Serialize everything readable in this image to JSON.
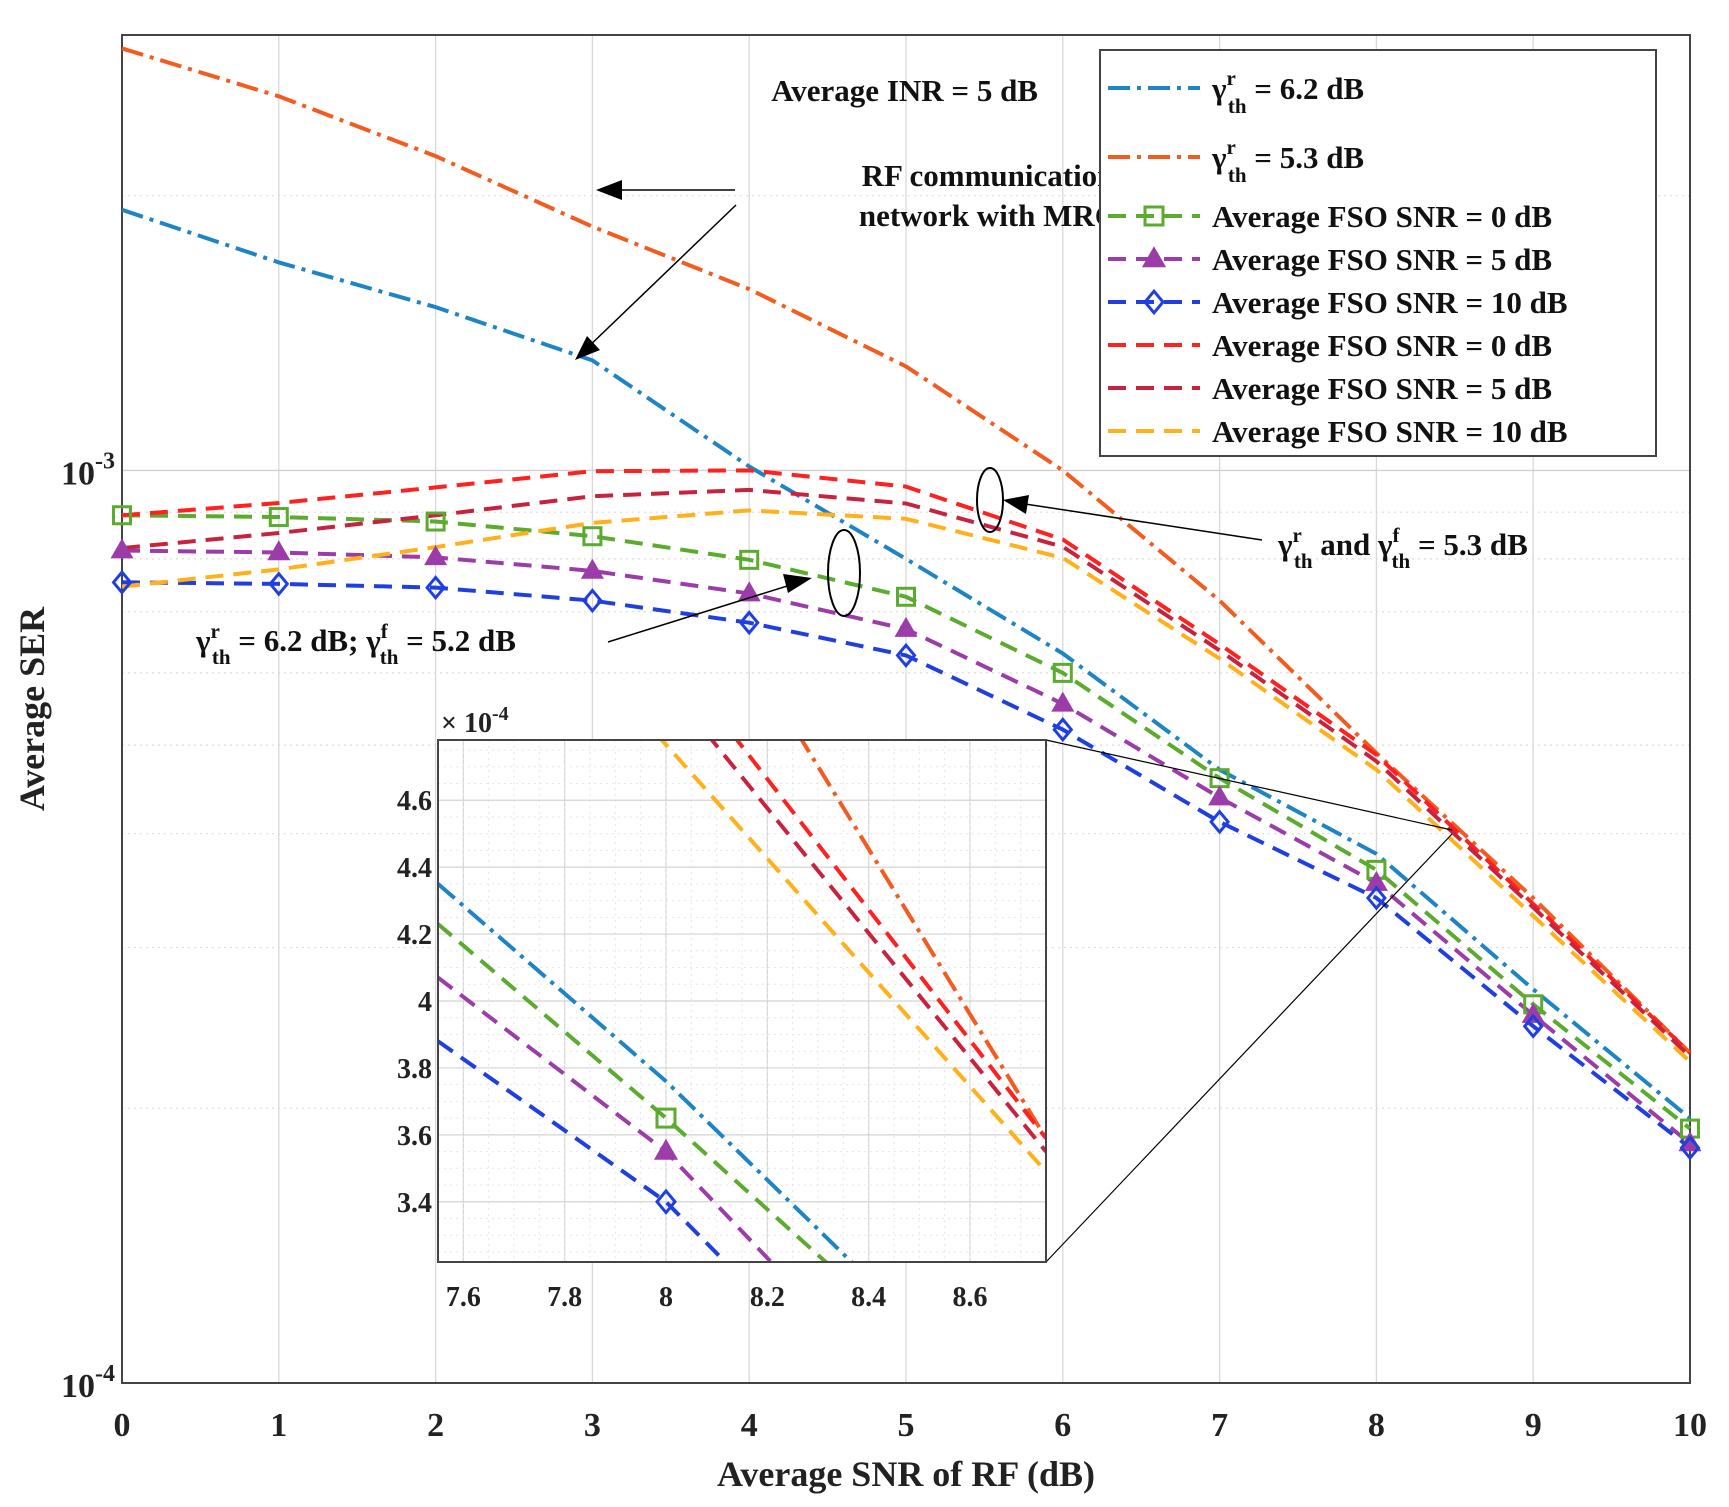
{
  "chart_data": {
    "type": "line",
    "xlabel": "Average SNR of RF (dB)",
    "ylabel": "Average SER",
    "xlim": [
      0,
      10
    ],
    "ylim": [
      0.0001,
      0.003
    ],
    "yscale": "log",
    "grid": true,
    "legend_position": "top-right",
    "x_ticks": [
      "0",
      "1",
      "2",
      "3",
      "4",
      "5",
      "6",
      "7",
      "8",
      "9",
      "10"
    ],
    "y_tick_labels": [
      {
        "base": "10",
        "exp": "-3",
        "value": 0.001
      },
      {
        "base": "10",
        "exp": "-4",
        "value": 0.0001
      }
    ],
    "x": [
      0,
      1,
      2,
      3,
      4,
      5,
      6,
      7,
      8,
      9,
      10
    ],
    "series": [
      {
        "id": "rf62",
        "name": "γ_th^r = 6.2 dB",
        "label_parts": [
          "γ",
          "th",
          "r",
          " = 6.2 dB"
        ],
        "color": "#1f84c4",
        "dash": "dashdot",
        "marker": "none",
        "values": [
          0.00193,
          0.00169,
          0.00151,
          0.00132,
          0.00101,
          0.0008,
          0.00063,
          0.00047,
          0.00038,
          0.00027,
          0.000195
        ]
      },
      {
        "id": "rf53",
        "name": "γ_th^r = 5.3 dB",
        "label_parts": [
          "γ",
          "th",
          "r",
          " = 5.3 dB"
        ],
        "color": "#f35b1f",
        "dash": "dashdot",
        "marker": "none",
        "values": [
          0.0029,
          0.00257,
          0.00221,
          0.00185,
          0.00158,
          0.0013,
          0.001,
          0.00072,
          0.00049,
          0.00034,
          0.00023
        ]
      },
      {
        "id": "s62_0",
        "name": "Average FSO SNR = 0 dB",
        "color": "#5aab2e",
        "dash": "dash",
        "marker": "square",
        "values": [
          0.000893,
          0.000889,
          0.000879,
          0.000847,
          0.000798,
          0.000727,
          0.0006,
          0.00046,
          0.000365,
          0.00026,
          0.00019
        ]
      },
      {
        "id": "s62_5",
        "name": "Average FSO SNR = 5 dB",
        "color": "#9b3ca8",
        "dash": "dash",
        "marker": "triangle",
        "values": [
          0.000817,
          0.000813,
          0.000803,
          0.000776,
          0.000733,
          0.00067,
          0.000555,
          0.000438,
          0.000353,
          0.000253,
          0.000183
        ]
      },
      {
        "id": "s62_10",
        "name": "Average FSO SNR = 10 dB",
        "color": "#1f3fe0",
        "dash": "dash",
        "marker": "diamond",
        "values": [
          0.000754,
          0.000751,
          0.000744,
          0.00072,
          0.000681,
          0.000627,
          0.00052,
          0.000412,
          0.00034,
          0.000246,
          0.000181
        ]
      },
      {
        "id": "s53_0",
        "name": "Average FSO SNR = 0 dB",
        "color": "#ff2020",
        "dash": "dash",
        "marker": "none",
        "values": [
          0.000893,
          0.000921,
          0.000958,
          0.000998,
          0.001,
          0.00096,
          0.00084,
          0.000645,
          0.000488,
          0.000335,
          0.00023
        ]
      },
      {
        "id": "s53_5",
        "name": "Average FSO SNR = 5 dB",
        "color": "#c7233f",
        "dash": "dash",
        "marker": "none",
        "values": [
          0.000822,
          0.000854,
          0.000893,
          0.000937,
          0.000952,
          0.00092,
          0.000825,
          0.000635,
          0.00048,
          0.000332,
          0.000228
        ]
      },
      {
        "id": "s53_10",
        "name": "Average FSO SNR = 10 dB",
        "color": "#ffb01a",
        "dash": "dash",
        "marker": "none",
        "values": [
          0.000746,
          0.000779,
          0.000824,
          0.000876,
          0.000904,
          0.000885,
          0.000802,
          0.000622,
          0.00047,
          0.000325,
          0.000225
        ]
      }
    ],
    "inset": {
      "multiplier_base": "× 10",
      "multiplier_exp": "-4",
      "xlim": [
        7.55,
        8.75
      ],
      "ylim": [
        3.22,
        4.78
      ],
      "x_ticks": [
        "7.6",
        "7.8",
        "8",
        "8.2",
        "8.4",
        "8.6"
      ],
      "y_ticks": [
        "3.4",
        "3.6",
        "3.8",
        "4",
        "4.2",
        "4.4",
        "4.6"
      ],
      "lines": [
        {
          "series": "rf62",
          "points": [
            [
              7.55,
              4.35
            ],
            [
              8.0,
              3.76
            ],
            [
              8.38,
              3.2
            ]
          ]
        },
        {
          "series": "s62_0",
          "points": [
            [
              7.55,
              4.23
            ],
            [
              8.0,
              3.65
            ],
            [
              8.33,
              3.2
            ]
          ]
        },
        {
          "series": "s62_5",
          "points": [
            [
              7.55,
              4.07
            ],
            [
              8.0,
              3.55
            ],
            [
              8.22,
              3.2
            ]
          ]
        },
        {
          "series": "s62_10",
          "points": [
            [
              7.55,
              3.88
            ],
            [
              8.0,
              3.4
            ],
            [
              8.13,
              3.2
            ]
          ]
        },
        {
          "series": "rf53",
          "points": [
            [
              8.26,
              4.8
            ],
            [
              8.75,
              3.59
            ]
          ]
        },
        {
          "series": "s53_0",
          "points": [
            [
              8.13,
              4.8
            ],
            [
              8.75,
              3.59
            ]
          ]
        },
        {
          "series": "s53_5",
          "points": [
            [
              8.08,
              4.8
            ],
            [
              8.75,
              3.55
            ]
          ]
        },
        {
          "series": "s53_10",
          "points": [
            [
              7.98,
              4.8
            ],
            [
              8.75,
              3.49
            ]
          ]
        }
      ],
      "markers": [
        {
          "series": "s62_0",
          "x": 8.0,
          "y": 3.65
        },
        {
          "series": "s62_5",
          "x": 8.0,
          "y": 3.55
        },
        {
          "series": "s62_10",
          "x": 8.0,
          "y": 3.4
        }
      ]
    },
    "annotations": {
      "inr": "Average INR = 5 dB",
      "rf_line1": "RF communication",
      "rf_line2": "network with MRC",
      "thr53": {
        "g1": "γ",
        "s1": "th",
        "p1": "r",
        "mid": " and ",
        "g2": "γ",
        "s2": "th",
        "p2": "f",
        "tail": " = 5.3 dB"
      },
      "thr62": {
        "g1": "γ",
        "s1": "th",
        "p1": "r",
        "mid": " = 6.2 dB; ",
        "g2": "γ",
        "s2": "th",
        "p2": "f",
        "tail": " = 5.2 dB"
      }
    }
  }
}
